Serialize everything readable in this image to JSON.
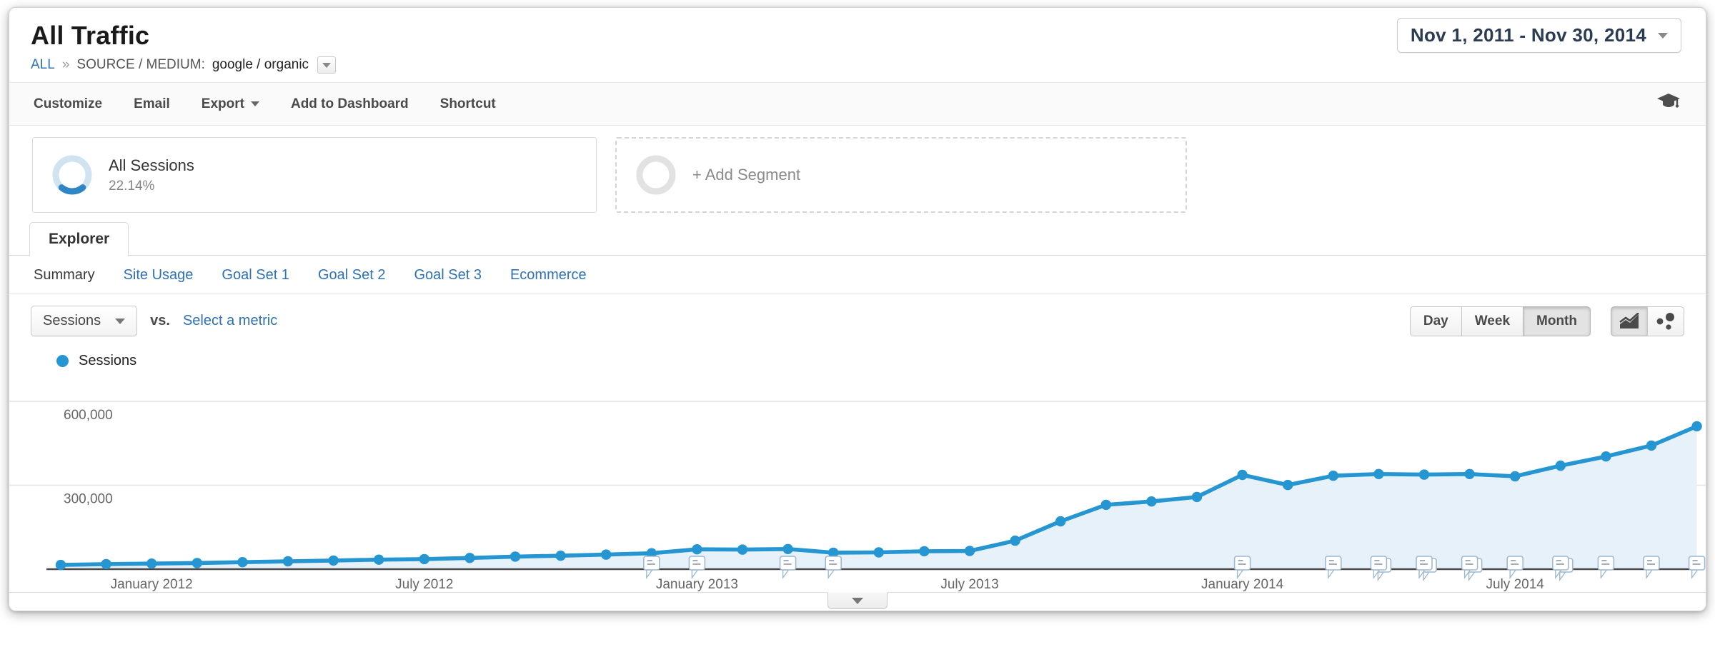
{
  "header": {
    "title": "All Traffic",
    "breadcrumb": {
      "root": "ALL",
      "separator": "»",
      "label": "SOURCE / MEDIUM:",
      "value": "google / organic"
    },
    "date_range": "Nov 1, 2011 - Nov 30, 2014"
  },
  "toolbar": {
    "items": [
      {
        "label": "Customize",
        "has_caret": false
      },
      {
        "label": "Email",
        "has_caret": false
      },
      {
        "label": "Export",
        "has_caret": true
      },
      {
        "label": "Add to Dashboard",
        "has_caret": false
      },
      {
        "label": "Shortcut",
        "has_caret": false
      }
    ],
    "education_icon": "graduation-cap-icon"
  },
  "segments": {
    "all_sessions": {
      "label": "All Sessions",
      "percent": "22.14%",
      "donut_percent": 22.14
    },
    "add_segment": {
      "label": "+ Add Segment"
    }
  },
  "tabs": {
    "explorer": "Explorer",
    "subtabs": [
      {
        "label": "Summary",
        "active": true
      },
      {
        "label": "Site Usage",
        "active": false
      },
      {
        "label": "Goal Set 1",
        "active": false
      },
      {
        "label": "Goal Set 2",
        "active": false
      },
      {
        "label": "Goal Set 3",
        "active": false
      },
      {
        "label": "Ecommerce",
        "active": false
      }
    ]
  },
  "controls": {
    "metric_selector": "Sessions",
    "vs_label": "vs.",
    "select_metric": "Select a metric",
    "granularity": [
      {
        "label": "Day",
        "active": false
      },
      {
        "label": "Week",
        "active": false
      },
      {
        "label": "Month",
        "active": true
      }
    ],
    "chart_types": [
      {
        "name": "line-chart",
        "active": true
      },
      {
        "name": "motion-chart",
        "active": false
      }
    ]
  },
  "legend": {
    "series": "Sessions"
  },
  "colors": {
    "line": "#2596d1",
    "area": "#e6f1f9",
    "link": "#2f71b3",
    "axis": "#4a4a4a",
    "grid": "#e4e4e4",
    "donut_arc": "#2e86c4",
    "donut_ring": "#cfe3f0",
    "tick_text": "#666666"
  },
  "chart_data": {
    "type": "line",
    "title": "Sessions by month",
    "legend": [
      "Sessions"
    ],
    "xlabel": "",
    "ylabel": "Sessions",
    "ylim": [
      0,
      660000
    ],
    "grid": true,
    "categories": [
      "Nov 2011",
      "Dec 2011",
      "Jan 2012",
      "Feb 2012",
      "Mar 2012",
      "Apr 2012",
      "May 2012",
      "Jun 2012",
      "Jul 2012",
      "Aug 2012",
      "Sep 2012",
      "Oct 2012",
      "Nov 2012",
      "Dec 2012",
      "Jan 2013",
      "Feb 2013",
      "Mar 2013",
      "Apr 2013",
      "May 2013",
      "Jun 2013",
      "Jul 2013",
      "Aug 2013",
      "Sep 2013",
      "Oct 2013",
      "Nov 2013",
      "Dec 2013",
      "Jan 2014",
      "Feb 2014",
      "Mar 2014",
      "Apr 2014",
      "May 2014",
      "Jun 2014",
      "Jul 2014",
      "Aug 2014",
      "Sep 2014",
      "Oct 2014",
      "Nov 2014"
    ],
    "values": [
      15000,
      18000,
      20000,
      22000,
      25000,
      28000,
      31000,
      34000,
      36000,
      40000,
      45000,
      48000,
      52000,
      57000,
      71000,
      70000,
      72000,
      59000,
      60000,
      64000,
      65000,
      102000,
      171000,
      230000,
      242000,
      258000,
      337000,
      301000,
      334000,
      340000,
      338000,
      340000,
      332000,
      370000,
      403000,
      442000,
      511000
    ],
    "y_ticks": [
      {
        "value": 300000,
        "label": "300,000"
      },
      {
        "value": 600000,
        "label": "600,000"
      }
    ],
    "x_ticks": [
      {
        "index": 2,
        "label": "January 2012"
      },
      {
        "index": 8,
        "label": "July 2012"
      },
      {
        "index": 14,
        "label": "January 2013"
      },
      {
        "index": 20,
        "label": "July 2013"
      },
      {
        "index": 26,
        "label": "January 2014"
      },
      {
        "index": 32,
        "label": "July 2014"
      }
    ],
    "annotations": [
      {
        "month": "Dec 2012",
        "index": 13,
        "count": 1
      },
      {
        "month": "Jan 2013",
        "index": 14,
        "count": 1
      },
      {
        "month": "Mar 2013",
        "index": 16,
        "count": 1
      },
      {
        "month": "Apr 2013",
        "index": 17,
        "count": 1
      },
      {
        "month": "Jan 2014",
        "index": 26,
        "count": 1
      },
      {
        "month": "Mar 2014",
        "index": 28,
        "count": 1
      },
      {
        "month": "Apr 2014",
        "index": 29,
        "count": 2
      },
      {
        "month": "May 2014",
        "index": 30,
        "count": 2
      },
      {
        "month": "Jun 2014",
        "index": 31,
        "count": 2
      },
      {
        "month": "Jul 2014",
        "index": 32,
        "count": 1
      },
      {
        "month": "Aug 2014",
        "index": 33,
        "count": 2
      },
      {
        "month": "Sep 2014",
        "index": 34,
        "count": 1
      },
      {
        "month": "Oct 2014",
        "index": 35,
        "count": 1
      },
      {
        "month": "Nov 2014",
        "index": 36,
        "count": 1
      }
    ]
  }
}
